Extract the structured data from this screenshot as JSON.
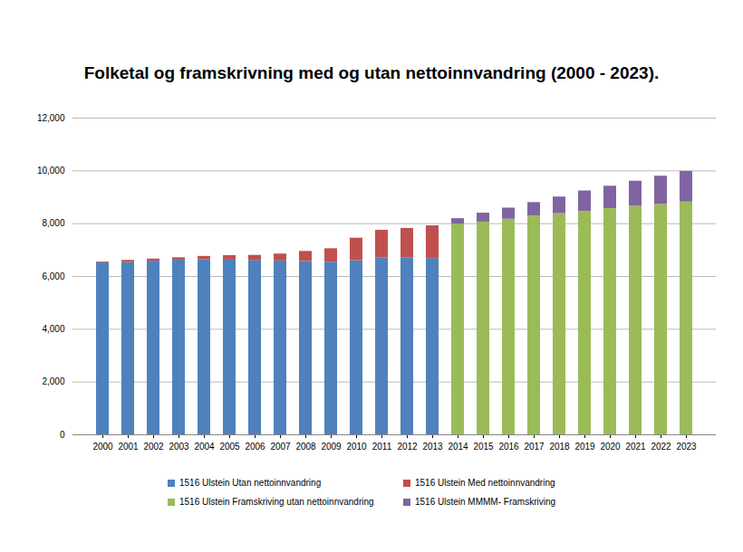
{
  "chart_data": {
    "type": "bar",
    "title": "Folketal og framskrivning med og utan nettoinnvandring (2000 - 2023).",
    "categories": [
      "2000",
      "2001",
      "2002",
      "2003",
      "2004",
      "2005",
      "2006",
      "2007",
      "2008",
      "2009",
      "2010",
      "2011",
      "2012",
      "2013",
      "2014",
      "2015",
      "2016",
      "2017",
      "2018",
      "2019",
      "2020",
      "2021",
      "2022",
      "2023"
    ],
    "series": [
      {
        "name": "1516 Ulstein Utan nettoinnvandring",
        "color": "#4f81bd",
        "values": [
          6520,
          6540,
          6580,
          6620,
          6640,
          6620,
          6610,
          6590,
          6570,
          6540,
          6600,
          6700,
          6700,
          6680,
          null,
          null,
          null,
          null,
          null,
          null,
          null,
          null,
          null,
          null
        ]
      },
      {
        "name": "1516 Ulstein Med nettoinnvandring",
        "color": "#c0504d",
        "values": [
          30,
          70,
          80,
          90,
          120,
          170,
          190,
          260,
          380,
          510,
          850,
          1050,
          1120,
          1240,
          null,
          null,
          null,
          null,
          null,
          null,
          null,
          null,
          null,
          null
        ]
      },
      {
        "name": "1516 Ulstein Framskriving utan nettoinnvandring",
        "color": "#9bbb59",
        "values": [
          null,
          null,
          null,
          null,
          null,
          null,
          null,
          null,
          null,
          null,
          null,
          null,
          null,
          null,
          7980,
          8060,
          8170,
          8290,
          8380,
          8470,
          8570,
          8660,
          8730,
          8820
        ]
      },
      {
        "name": "1516 Ulstein MMMM- Framskriving",
        "color": "#8064a2",
        "values": [
          null,
          null,
          null,
          null,
          null,
          null,
          null,
          null,
          null,
          null,
          null,
          null,
          null,
          null,
          210,
          340,
          420,
          510,
          630,
          770,
          850,
          950,
          1070,
          1160
        ]
      }
    ],
    "ylim": [
      0,
      12000
    ],
    "yticks": [
      0,
      2000,
      4000,
      6000,
      8000,
      10000,
      12000
    ],
    "grid": true,
    "stacked": true,
    "legend": "bottom"
  }
}
